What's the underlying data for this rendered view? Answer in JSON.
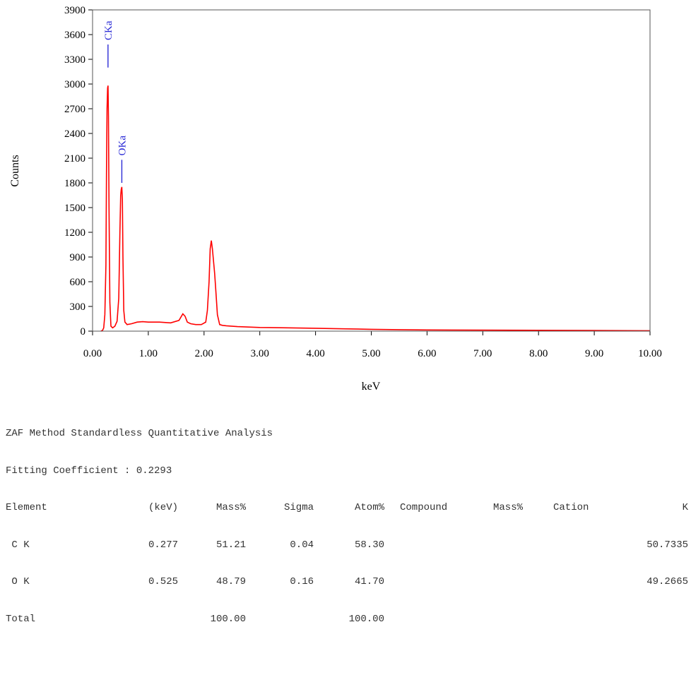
{
  "chart_data": {
    "type": "line",
    "xlabel": "keV",
    "ylabel": "Counts",
    "xlim": [
      0,
      10
    ],
    "ylim": [
      0,
      3900
    ],
    "x_ticks": [
      "0.00",
      "1.00",
      "2.00",
      "3.00",
      "4.00",
      "5.00",
      "6.00",
      "7.00",
      "8.00",
      "9.00",
      "10.00"
    ],
    "y_ticks": [
      "0",
      "300",
      "600",
      "900",
      "1200",
      "1500",
      "1800",
      "2100",
      "2400",
      "2700",
      "3000",
      "3300",
      "3600",
      "3900"
    ],
    "color": "#ff0000",
    "series": [
      {
        "x": [
          0.15,
          0.18,
          0.2,
          0.22,
          0.24,
          0.25,
          0.26,
          0.27,
          0.277,
          0.285,
          0.295,
          0.31,
          0.33,
          0.36,
          0.4,
          0.44,
          0.47,
          0.49,
          0.505,
          0.515,
          0.525,
          0.535,
          0.545,
          0.56,
          0.58,
          0.62,
          0.7,
          0.8,
          0.9,
          1.0,
          1.2,
          1.4,
          1.55,
          1.62,
          1.66,
          1.7,
          1.76,
          1.85,
          1.95,
          2.03,
          2.06,
          2.09,
          2.11,
          2.13,
          2.15,
          2.17,
          2.19,
          2.21,
          2.24,
          2.28,
          2.33,
          2.4,
          2.6,
          3.0,
          3.5,
          4.0,
          4.5,
          5.0,
          5.5,
          6.0,
          7.0,
          8.0,
          9.0,
          10.0
        ],
        "y": [
          0,
          10,
          40,
          200,
          800,
          1900,
          2700,
          2950,
          2980,
          2600,
          1500,
          350,
          60,
          40,
          60,
          120,
          400,
          1200,
          1650,
          1720,
          1750,
          1600,
          900,
          250,
          110,
          80,
          90,
          110,
          115,
          110,
          110,
          100,
          130,
          210,
          180,
          110,
          90,
          80,
          80,
          110,
          250,
          600,
          1000,
          1100,
          1000,
          850,
          700,
          500,
          200,
          80,
          70,
          65,
          55,
          45,
          40,
          35,
          28,
          22,
          18,
          15,
          12,
          10,
          8,
          5
        ]
      }
    ],
    "annotations": [
      {
        "text": "CKa",
        "x": 0.277,
        "y_from": 3200,
        "y_to": 3480
      },
      {
        "text": "OKa",
        "x": 0.525,
        "y_from": 1800,
        "y_to": 2080
      }
    ]
  },
  "report": {
    "title": "ZAF Method Standardless Quantitative Analysis",
    "fitting": "Fitting Coefficient : 0.2293",
    "headers": [
      "Element",
      "(keV)",
      "Mass%",
      "Sigma",
      "Atom%",
      "Compound",
      "Mass%",
      "Cation",
      "K"
    ],
    "rows": [
      {
        "element": " C K",
        "kev": "0.277",
        "mass": "51.21",
        "sigma": "0.04",
        "atom": "58.30",
        "k": "50.7335"
      },
      {
        "element": " O K",
        "kev": "0.525",
        "mass": "48.79",
        "sigma": "0.16",
        "atom": "41.70",
        "k": "49.2665"
      }
    ],
    "total": {
      "label": "Total",
      "mass": "100.00",
      "atom": "100.00"
    }
  }
}
